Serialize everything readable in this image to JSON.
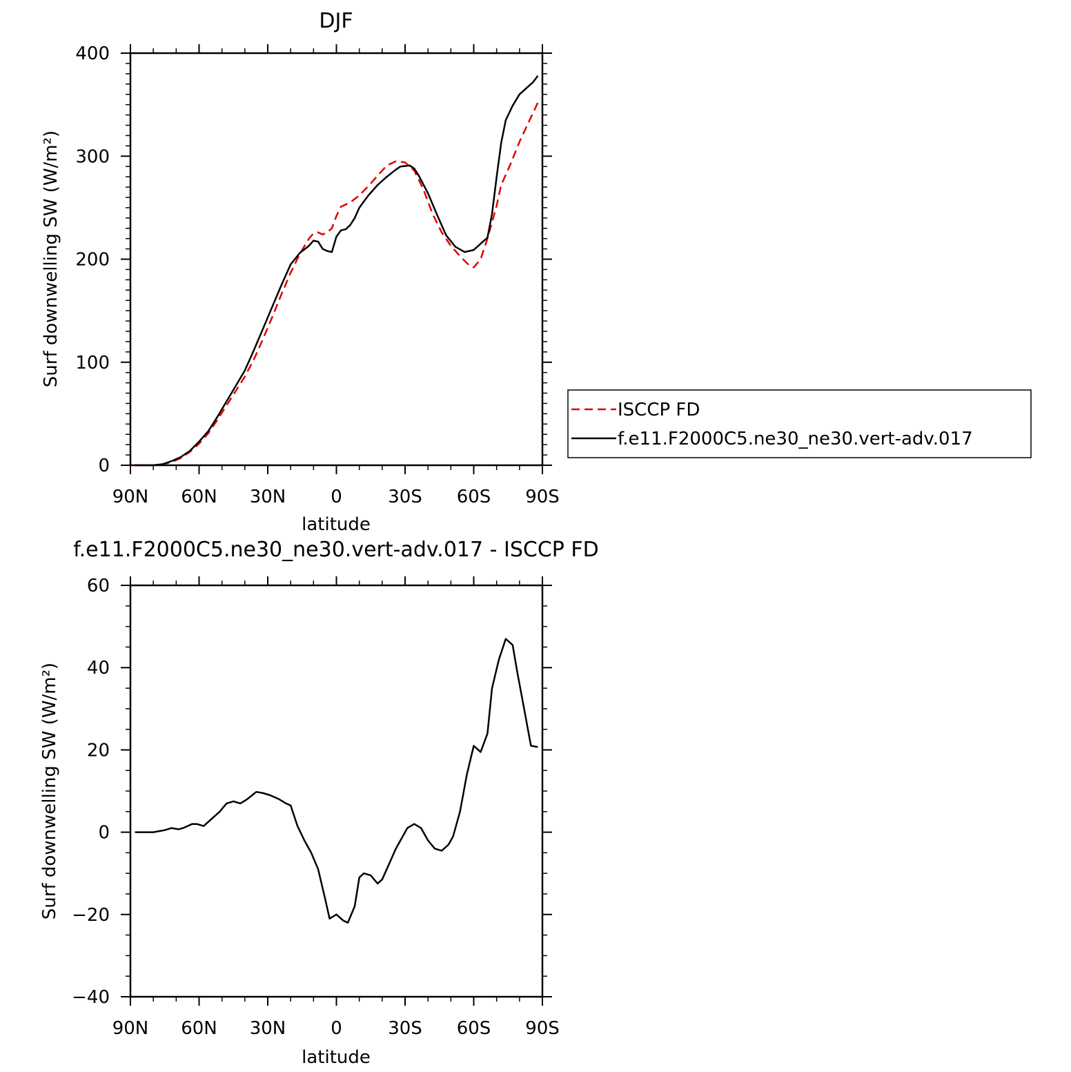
{
  "chart_data": [
    {
      "type": "line",
      "title": "DJF",
      "xlabel": "latitude",
      "ylabel": "Surf downwelling SW (W/m²)",
      "xlim": [
        -90,
        90
      ],
      "ylim": [
        0,
        400
      ],
      "xticks": [
        {
          "value": -90,
          "label": "90N"
        },
        {
          "value": -60,
          "label": "60N"
        },
        {
          "value": -30,
          "label": "30N"
        },
        {
          "value": 0,
          "label": "0"
        },
        {
          "value": 30,
          "label": "30S"
        },
        {
          "value": 60,
          "label": "60S"
        },
        {
          "value": 90,
          "label": "90S"
        }
      ],
      "yticks": [
        0,
        100,
        200,
        300,
        400
      ],
      "legend": {
        "position": "right"
      },
      "series": [
        {
          "name": "ISCCP FD",
          "color": "#e00000",
          "dash": "dashed",
          "points": [
            [
              -88,
              0
            ],
            [
              -84,
              0
            ],
            [
              -80,
              0
            ],
            [
              -76,
              1
            ],
            [
              -72,
              3
            ],
            [
              -68,
              7
            ],
            [
              -64,
              13
            ],
            [
              -60,
              21
            ],
            [
              -56,
              31
            ],
            [
              -52,
              44
            ],
            [
              -48,
              58
            ],
            [
              -44,
              72
            ],
            [
              -40,
              86
            ],
            [
              -36,
              103
            ],
            [
              -32,
              123
            ],
            [
              -28,
              144
            ],
            [
              -24,
              166
            ],
            [
              -20,
              187
            ],
            [
              -16,
              205
            ],
            [
              -12,
              220
            ],
            [
              -10,
              225
            ],
            [
              -8,
              226
            ],
            [
              -6,
              224
            ],
            [
              -4,
              226
            ],
            [
              -2,
              230
            ],
            [
              0,
              242
            ],
            [
              2,
              251
            ],
            [
              6,
              255
            ],
            [
              10,
              262
            ],
            [
              14,
              271
            ],
            [
              18,
              281
            ],
            [
              22,
              291
            ],
            [
              26,
              295
            ],
            [
              30,
              294
            ],
            [
              34,
              286
            ],
            [
              38,
              268
            ],
            [
              42,
              244
            ],
            [
              46,
              226
            ],
            [
              50,
              213
            ],
            [
              54,
              203
            ],
            [
              58,
              194
            ],
            [
              60,
              192
            ],
            [
              63,
              200
            ],
            [
              66,
              220
            ],
            [
              70,
              252
            ],
            [
              72,
              272
            ],
            [
              76,
              292
            ],
            [
              80,
              314
            ],
            [
              84,
              333
            ],
            [
              88,
              352
            ],
            [
              89,
              356
            ]
          ]
        },
        {
          "name": "f.e11.F2000C5.ne30_ne30.vert-adv.017",
          "color": "#000000",
          "dash": "solid",
          "points": [
            [
              -88,
              0
            ],
            [
              -84,
              0
            ],
            [
              -80,
              0
            ],
            [
              -76,
              1
            ],
            [
              -72,
              4
            ],
            [
              -68,
              8
            ],
            [
              -64,
              14
            ],
            [
              -60,
              23
            ],
            [
              -56,
              33
            ],
            [
              -52,
              47
            ],
            [
              -48,
              62
            ],
            [
              -44,
              77
            ],
            [
              -40,
              92
            ],
            [
              -36,
              112
            ],
            [
              -32,
              133
            ],
            [
              -28,
              154
            ],
            [
              -24,
              175
            ],
            [
              -20,
              195
            ],
            [
              -16,
              206
            ],
            [
              -12,
              213
            ],
            [
              -10,
              218
            ],
            [
              -8,
              217
            ],
            [
              -6,
              210
            ],
            [
              -4,
              208
            ],
            [
              -2,
              207
            ],
            [
              0,
              222
            ],
            [
              2,
              228
            ],
            [
              4,
              229
            ],
            [
              6,
              233
            ],
            [
              8,
              240
            ],
            [
              10,
              250
            ],
            [
              14,
              262
            ],
            [
              18,
              272
            ],
            [
              22,
              280
            ],
            [
              26,
              287
            ],
            [
              28,
              290
            ],
            [
              32,
              291
            ],
            [
              34,
              288
            ],
            [
              36,
              281
            ],
            [
              40,
              264
            ],
            [
              44,
              243
            ],
            [
              48,
              223
            ],
            [
              52,
              212
            ],
            [
              56,
              207
            ],
            [
              60,
              209
            ],
            [
              64,
              217
            ],
            [
              66,
              221
            ],
            [
              68,
              244
            ],
            [
              70,
              280
            ],
            [
              72,
              313
            ],
            [
              74,
              335
            ],
            [
              77,
              349
            ],
            [
              80,
              360
            ],
            [
              83,
              366
            ],
            [
              86,
              372
            ],
            [
              88,
              378
            ]
          ]
        }
      ]
    },
    {
      "type": "line",
      "title": "f.e11.F2000C5.ne30_ne30.vert-adv.017 - ISCCP FD",
      "xlabel": "latitude",
      "ylabel": "Surf downwelling SW (W/m²)",
      "xlim": [
        -90,
        90
      ],
      "ylim": [
        -40,
        60
      ],
      "xticks": [
        {
          "value": -90,
          "label": "90N"
        },
        {
          "value": -60,
          "label": "60N"
        },
        {
          "value": -30,
          "label": "30N"
        },
        {
          "value": 0,
          "label": "0"
        },
        {
          "value": 30,
          "label": "30S"
        },
        {
          "value": 60,
          "label": "60S"
        },
        {
          "value": 90,
          "label": "90S"
        }
      ],
      "yticks": [
        -40,
        -20,
        0,
        20,
        40,
        60
      ],
      "series": [
        {
          "color": "#000000",
          "dash": "solid",
          "points": [
            [
              -88,
              0
            ],
            [
              -84,
              0
            ],
            [
              -80,
              0
            ],
            [
              -78,
              0.2
            ],
            [
              -75,
              0.5
            ],
            [
              -72,
              1
            ],
            [
              -69,
              0.7
            ],
            [
              -67,
              1
            ],
            [
              -63,
              2
            ],
            [
              -61,
              2
            ],
            [
              -58,
              1.5
            ],
            [
              -55,
              3
            ],
            [
              -51,
              5
            ],
            [
              -48,
              7
            ],
            [
              -45,
              7.5
            ],
            [
              -42,
              7
            ],
            [
              -39,
              8
            ],
            [
              -35,
              9.8
            ],
            [
              -32,
              9.5
            ],
            [
              -29,
              9
            ],
            [
              -25,
              8
            ],
            [
              -22,
              7
            ],
            [
              -20,
              6.5
            ],
            [
              -17,
              1.5
            ],
            [
              -14,
              -2
            ],
            [
              -11,
              -5
            ],
            [
              -8,
              -9
            ],
            [
              -5,
              -16
            ],
            [
              -3,
              -21
            ],
            [
              0,
              -20
            ],
            [
              3,
              -21.5
            ],
            [
              5,
              -22
            ],
            [
              8,
              -18
            ],
            [
              10,
              -11
            ],
            [
              12,
              -10
            ],
            [
              15,
              -10.5
            ],
            [
              18,
              -12.5
            ],
            [
              20,
              -11.5
            ],
            [
              22,
              -9
            ],
            [
              26,
              -4
            ],
            [
              31,
              1
            ],
            [
              34,
              2
            ],
            [
              37,
              1
            ],
            [
              40,
              -2
            ],
            [
              43,
              -4
            ],
            [
              46,
              -4.5
            ],
            [
              49,
              -3
            ],
            [
              51,
              -1
            ],
            [
              54,
              5
            ],
            [
              57,
              14
            ],
            [
              60,
              21
            ],
            [
              63,
              19.5
            ],
            [
              66,
              24
            ],
            [
              68,
              35
            ],
            [
              71,
              42
            ],
            [
              74,
              47
            ],
            [
              77,
              45.5
            ],
            [
              79,
              39
            ],
            [
              82,
              30
            ],
            [
              85,
              21
            ],
            [
              88,
              20.7
            ]
          ]
        }
      ]
    }
  ]
}
